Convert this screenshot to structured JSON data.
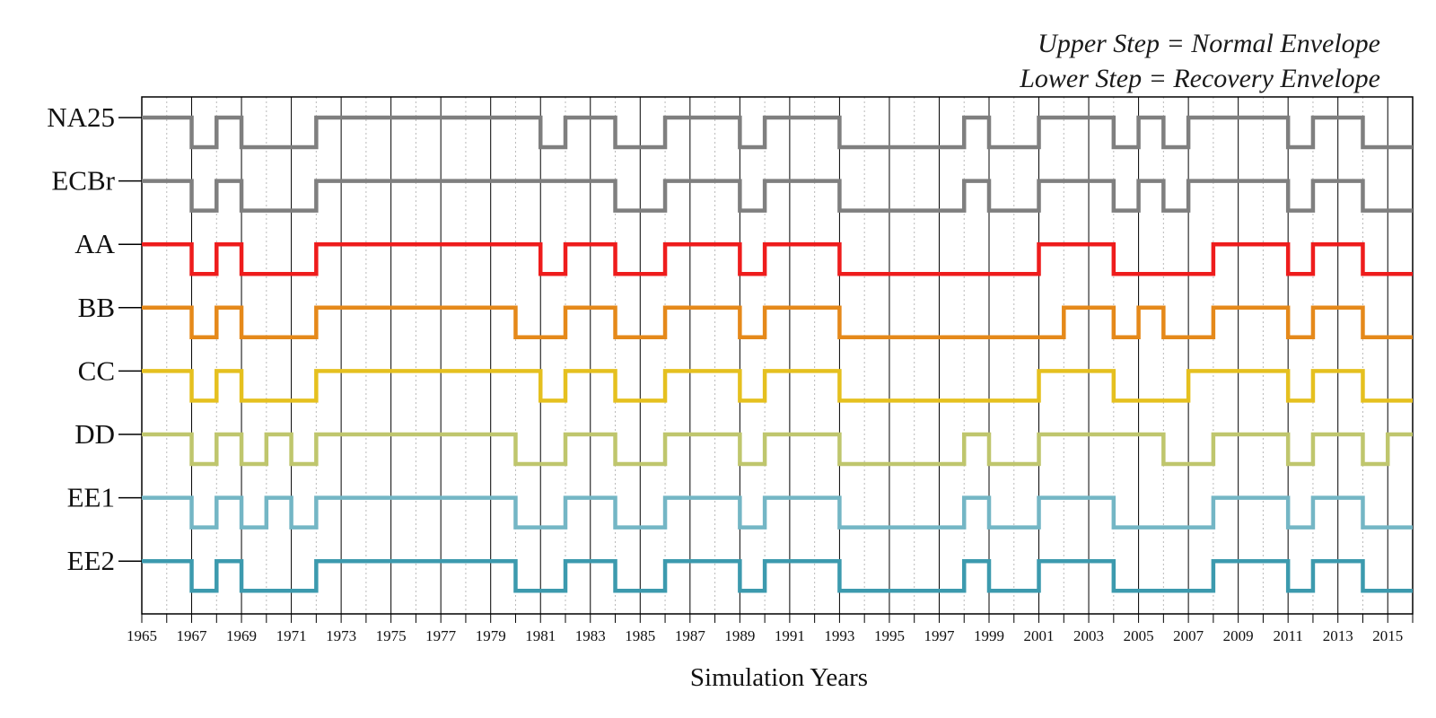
{
  "annotations": {
    "upper": "Upper Step = Normal Envelope",
    "lower": "Lower Step = Recovery Envelope"
  },
  "chart_data": {
    "type": "line",
    "subtype": "step",
    "xlabel": "Simulation Years",
    "ylabel": "",
    "xlim": [
      1965,
      2016
    ],
    "x_tick_labels": [
      "1965",
      "1967",
      "1969",
      "1971",
      "1973",
      "1975",
      "1977",
      "1979",
      "1981",
      "1983",
      "1985",
      "1987",
      "1989",
      "1991",
      "1993",
      "1995",
      "1997",
      "1999",
      "2001",
      "2003",
      "2005",
      "2007",
      "2009",
      "2011",
      "2013",
      "2015"
    ],
    "major_gridlines_every_years": 2,
    "minor_gridlines_dotted": true,
    "state_meaning": {
      "1": "Upper Step = Normal Envelope",
      "0": "Lower Step = Recovery Envelope"
    },
    "series": [
      {
        "name": "NA25",
        "color": "#7f7f7f",
        "changes": [
          [
            1965,
            1
          ],
          [
            1967,
            0
          ],
          [
            1968,
            1
          ],
          [
            1969,
            0
          ],
          [
            1972,
            1
          ],
          [
            1981,
            0
          ],
          [
            1982,
            1
          ],
          [
            1984,
            0
          ],
          [
            1986,
            1
          ],
          [
            1989,
            0
          ],
          [
            1990,
            1
          ],
          [
            1993,
            0
          ],
          [
            1998,
            1
          ],
          [
            1999,
            0
          ],
          [
            2001,
            1
          ],
          [
            2004,
            0
          ],
          [
            2005,
            1
          ],
          [
            2006,
            0
          ],
          [
            2007,
            1
          ],
          [
            2011,
            0
          ],
          [
            2012,
            1
          ],
          [
            2014,
            0
          ]
        ]
      },
      {
        "name": "ECBr",
        "color": "#7f7f7f",
        "changes": [
          [
            1965,
            1
          ],
          [
            1967,
            0
          ],
          [
            1968,
            1
          ],
          [
            1969,
            0
          ],
          [
            1972,
            1
          ],
          [
            1984,
            0
          ],
          [
            1986,
            1
          ],
          [
            1989,
            0
          ],
          [
            1990,
            1
          ],
          [
            1993,
            0
          ],
          [
            1998,
            1
          ],
          [
            1999,
            0
          ],
          [
            2001,
            1
          ],
          [
            2004,
            0
          ],
          [
            2005,
            1
          ],
          [
            2006,
            0
          ],
          [
            2007,
            1
          ],
          [
            2011,
            0
          ],
          [
            2012,
            1
          ],
          [
            2014,
            0
          ]
        ]
      },
      {
        "name": "AA",
        "color": "#ee1c1c",
        "changes": [
          [
            1965,
            1
          ],
          [
            1967,
            0
          ],
          [
            1968,
            1
          ],
          [
            1969,
            0
          ],
          [
            1972,
            1
          ],
          [
            1981,
            0
          ],
          [
            1982,
            1
          ],
          [
            1984,
            0
          ],
          [
            1986,
            1
          ],
          [
            1989,
            0
          ],
          [
            1990,
            1
          ],
          [
            1993,
            0
          ],
          [
            2001,
            1
          ],
          [
            2004,
            0
          ],
          [
            2008,
            1
          ],
          [
            2011,
            0
          ],
          [
            2012,
            1
          ],
          [
            2014,
            0
          ]
        ]
      },
      {
        "name": "BB",
        "color": "#e5891a",
        "changes": [
          [
            1965,
            1
          ],
          [
            1967,
            0
          ],
          [
            1968,
            1
          ],
          [
            1969,
            0
          ],
          [
            1972,
            1
          ],
          [
            1980,
            0
          ],
          [
            1982,
            1
          ],
          [
            1984,
            0
          ],
          [
            1986,
            1
          ],
          [
            1989,
            0
          ],
          [
            1990,
            1
          ],
          [
            1993,
            0
          ],
          [
            2002,
            1
          ],
          [
            2004,
            0
          ],
          [
            2005,
            1
          ],
          [
            2006,
            0
          ],
          [
            2008,
            1
          ],
          [
            2011,
            0
          ],
          [
            2012,
            1
          ],
          [
            2014,
            0
          ]
        ]
      },
      {
        "name": "CC",
        "color": "#e5c01f",
        "changes": [
          [
            1965,
            1
          ],
          [
            1967,
            0
          ],
          [
            1968,
            1
          ],
          [
            1969,
            0
          ],
          [
            1972,
            1
          ],
          [
            1981,
            0
          ],
          [
            1982,
            1
          ],
          [
            1984,
            0
          ],
          [
            1986,
            1
          ],
          [
            1989,
            0
          ],
          [
            1990,
            1
          ],
          [
            1993,
            0
          ],
          [
            2001,
            1
          ],
          [
            2004,
            0
          ],
          [
            2007,
            1
          ],
          [
            2011,
            0
          ],
          [
            2012,
            1
          ],
          [
            2014,
            0
          ]
        ]
      },
      {
        "name": "DD",
        "color": "#bfc66d",
        "changes": [
          [
            1965,
            1
          ],
          [
            1967,
            0
          ],
          [
            1968,
            1
          ],
          [
            1969,
            0
          ],
          [
            1970,
            1
          ],
          [
            1971,
            0
          ],
          [
            1972,
            1
          ],
          [
            1980,
            0
          ],
          [
            1982,
            1
          ],
          [
            1984,
            0
          ],
          [
            1986,
            1
          ],
          [
            1989,
            0
          ],
          [
            1990,
            1
          ],
          [
            1993,
            0
          ],
          [
            1998,
            1
          ],
          [
            1999,
            0
          ],
          [
            2001,
            1
          ],
          [
            2006,
            0
          ],
          [
            2008,
            1
          ],
          [
            2011,
            0
          ],
          [
            2012,
            1
          ],
          [
            2014,
            0
          ],
          [
            2015,
            1
          ]
        ]
      },
      {
        "name": "EE1",
        "color": "#74b6c5",
        "changes": [
          [
            1965,
            1
          ],
          [
            1967,
            0
          ],
          [
            1968,
            1
          ],
          [
            1969,
            0
          ],
          [
            1970,
            1
          ],
          [
            1971,
            0
          ],
          [
            1972,
            1
          ],
          [
            1980,
            0
          ],
          [
            1982,
            1
          ],
          [
            1984,
            0
          ],
          [
            1986,
            1
          ],
          [
            1989,
            0
          ],
          [
            1990,
            1
          ],
          [
            1993,
            0
          ],
          [
            1998,
            1
          ],
          [
            1999,
            0
          ],
          [
            2001,
            1
          ],
          [
            2004,
            0
          ],
          [
            2008,
            1
          ],
          [
            2011,
            0
          ],
          [
            2012,
            1
          ],
          [
            2014,
            0
          ]
        ]
      },
      {
        "name": "EE2",
        "color": "#3c9aae",
        "changes": [
          [
            1965,
            1
          ],
          [
            1967,
            0
          ],
          [
            1968,
            1
          ],
          [
            1969,
            0
          ],
          [
            1972,
            1
          ],
          [
            1980,
            0
          ],
          [
            1982,
            1
          ],
          [
            1984,
            0
          ],
          [
            1986,
            1
          ],
          [
            1989,
            0
          ],
          [
            1990,
            1
          ],
          [
            1993,
            0
          ],
          [
            1998,
            1
          ],
          [
            1999,
            0
          ],
          [
            2001,
            1
          ],
          [
            2004,
            0
          ],
          [
            2008,
            1
          ],
          [
            2011,
            0
          ],
          [
            2012,
            1
          ],
          [
            2014,
            0
          ]
        ]
      }
    ]
  }
}
